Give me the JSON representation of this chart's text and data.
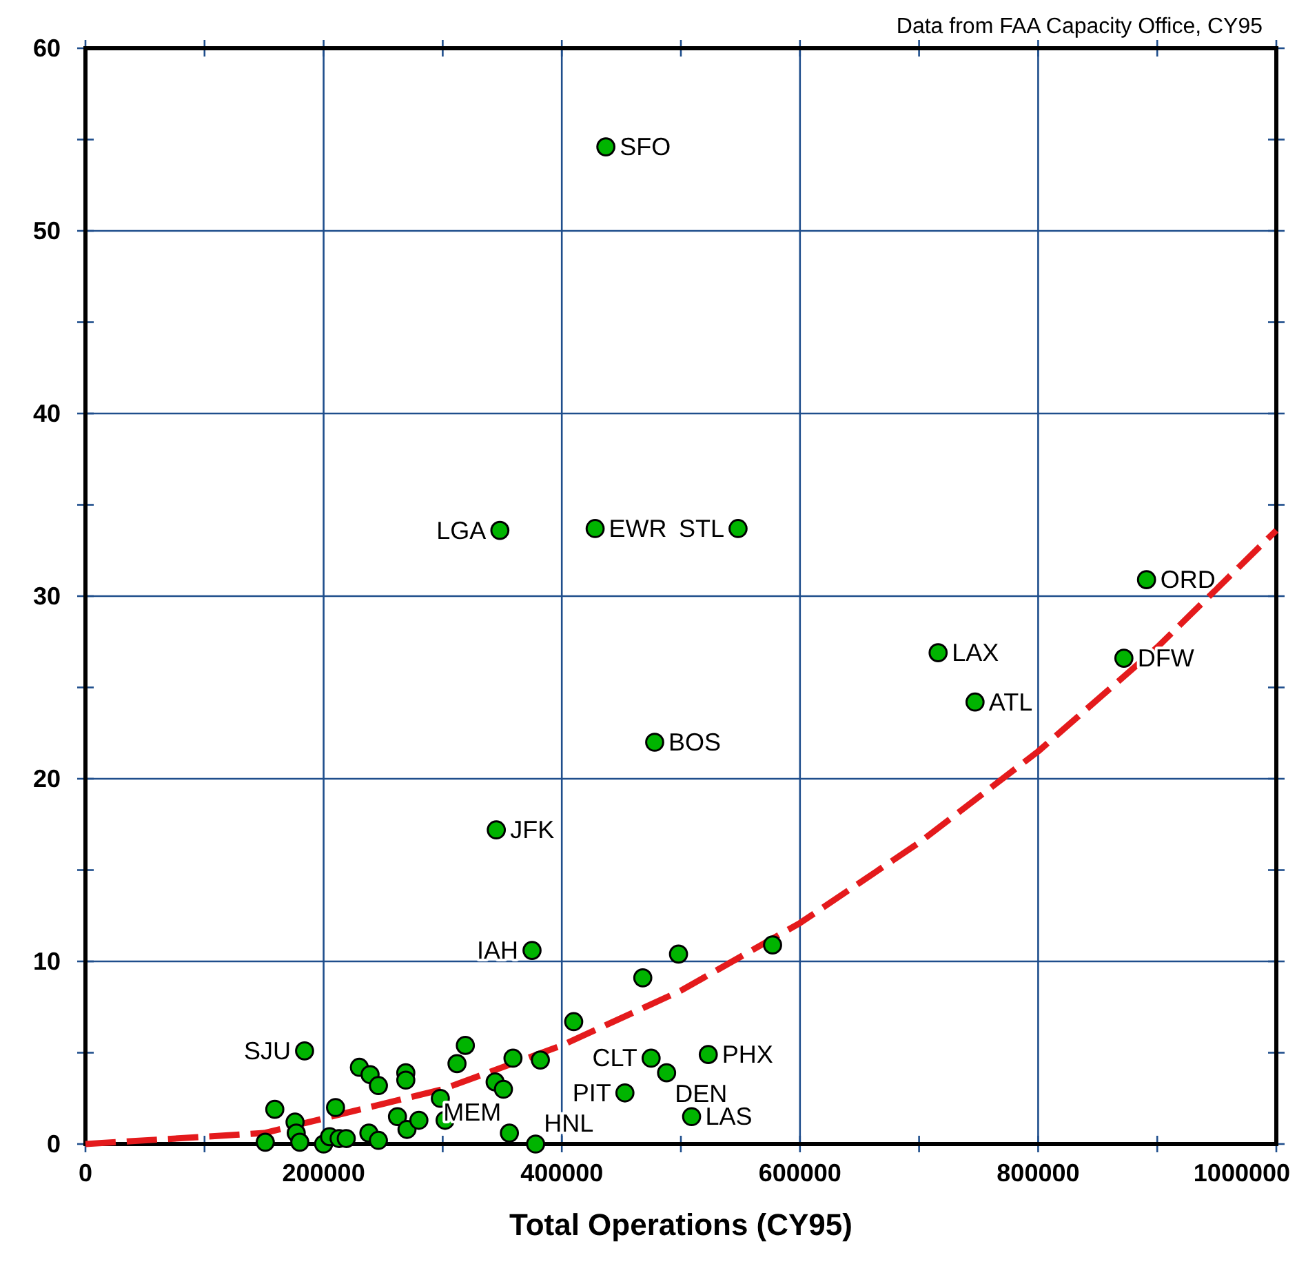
{
  "chart_data": {
    "type": "scatter",
    "xlabel": "Total Operations (CY95)",
    "annotations": [
      "Data from FAA Capacity Office, CY95"
    ],
    "xlim": [
      0,
      1000000
    ],
    "xticks": [
      0,
      {
        "value": 100000,
        "label": null
      },
      200000,
      {
        "value": 300000,
        "label": null
      },
      400000,
      {
        "value": 500000,
        "label": null
      },
      600000,
      {
        "value": 700000,
        "label": null
      },
      800000,
      {
        "value": 900000,
        "label": null
      },
      1000000
    ],
    "ylim": [
      0,
      60
    ],
    "yticks": [
      0,
      {
        "value": 5,
        "label": null
      },
      10,
      {
        "value": 15,
        "label": null
      },
      20,
      {
        "value": 25,
        "label": null
      },
      30,
      {
        "value": 35,
        "label": null
      },
      40,
      {
        "value": 45,
        "label": null
      },
      50,
      {
        "value": 55,
        "label": null
      },
      60
    ],
    "grid": true,
    "series": [
      {
        "type": "line",
        "color": "#e41a1c",
        "line_style": "dashed",
        "marker": "none",
        "x": [
          0,
          150000,
          200000,
          300000,
          400000,
          500000,
          600000,
          700000,
          800000,
          900000,
          1000000
        ],
        "values": [
          0,
          0.6,
          1.4,
          3.0,
          5.4,
          8.4,
          12.1,
          16.5,
          21.5,
          27.2,
          33.6
        ]
      },
      {
        "type": "scatter",
        "color": "#00b400",
        "marker": "circle",
        "x": [
          437000,
          348000,
          428000,
          548000,
          891000,
          716000,
          872000,
          747000,
          478000,
          345000,
          375000,
          498000,
          468000,
          577000,
          410000,
          475000,
          523000,
          488000,
          453000,
          509000,
          356000,
          378000,
          184000,
          159000,
          151000,
          176000,
          177000,
          180000,
          200000,
          205000,
          210000,
          213000,
          219000,
          230000,
          239000,
          246000,
          238000,
          246000,
          262000,
          270000,
          280000,
          269000,
          269000,
          298000,
          302000,
          312000,
          319000,
          344000,
          351000,
          359000,
          382000
        ],
        "values": [
          54.6,
          33.6,
          33.7,
          33.7,
          30.9,
          26.9,
          26.6,
          24.2,
          22.0,
          17.2,
          10.6,
          10.4,
          9.1,
          10.9,
          6.7,
          4.7,
          4.9,
          3.9,
          2.8,
          1.5,
          0.6,
          0.0,
          5.1,
          1.9,
          0.1,
          1.2,
          0.6,
          0.1,
          0.0,
          0.4,
          2.0,
          0.3,
          0.3,
          4.2,
          3.8,
          3.2,
          0.6,
          0.2,
          1.5,
          0.8,
          1.3,
          3.9,
          3.5,
          2.5,
          1.3,
          4.4,
          5.4,
          3.4,
          3.0,
          4.7,
          4.6
        ],
        "value_labels": [
          "SFO",
          "LGA",
          "EWR",
          "STL",
          "ORD",
          "LAX",
          "DFW",
          "ATL",
          "BOS",
          "JFK",
          "IAH",
          null,
          null,
          null,
          null,
          "CLT",
          "PHX",
          "DEN",
          "PIT",
          "LAS",
          "MEM",
          "HNL",
          "SJU",
          null,
          null,
          null,
          null,
          null,
          null,
          null,
          null,
          null,
          null,
          null,
          null,
          null,
          null,
          null,
          null,
          null,
          null,
          null,
          null,
          null,
          null,
          null,
          null,
          null,
          null,
          null,
          null
        ]
      }
    ]
  }
}
